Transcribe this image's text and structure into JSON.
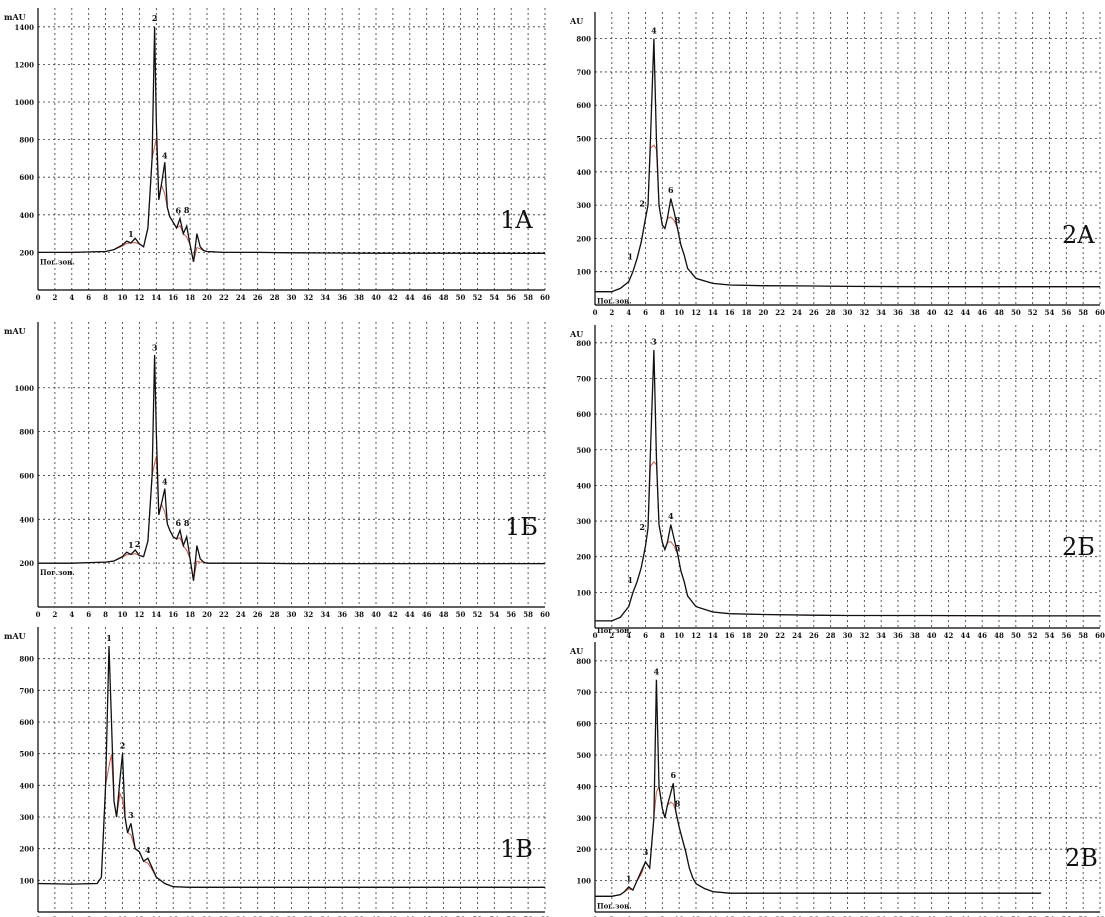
{
  "chart_data": [
    {
      "id": "1A",
      "type": "line",
      "title": "1A",
      "ylabel": "mAU",
      "xlabel": "",
      "ylim": [
        0,
        1500
      ],
      "yticks": [
        200,
        400,
        600,
        800,
        1000,
        1200,
        1400
      ],
      "xlim": [
        0,
        60
      ],
      "xtick_step": 2,
      "baseline_label": "Пог.зон.",
      "series": [
        {
          "x": [
            0,
            4,
            8,
            9,
            10,
            10.5,
            11,
            11.5,
            12,
            12.5,
            13,
            13.5,
            13.8,
            14,
            14.3,
            14.6,
            15,
            15.3,
            15.6,
            16,
            16.4,
            16.8,
            17.2,
            17.6,
            18,
            18.4,
            18.8,
            19.2,
            19.6,
            20,
            22,
            26,
            30,
            34,
            40,
            46,
            50,
            54,
            60
          ],
          "y": [
            200,
            200,
            205,
            215,
            240,
            260,
            250,
            275,
            245,
            230,
            330,
            700,
            1400,
            900,
            480,
            560,
            680,
            440,
            390,
            360,
            330,
            380,
            300,
            340,
            240,
            150,
            300,
            230,
            210,
            205,
            200,
            200,
            198,
            197,
            196,
            196,
            196,
            195,
            195
          ]
        }
      ],
      "peak_labels": [
        {
          "x": 11,
          "y": 270,
          "text": "1"
        },
        {
          "x": 13.8,
          "y": 1420,
          "text": "2"
        },
        {
          "x": 15,
          "y": 690,
          "text": "4"
        },
        {
          "x": 16.6,
          "y": 395,
          "text": "6"
        },
        {
          "x": 17.6,
          "y": 400,
          "text": "8"
        }
      ]
    },
    {
      "id": "1Б",
      "type": "line",
      "title": "1Б",
      "ylabel": "mAU",
      "xlabel": "",
      "ylim": [
        0,
        1300
      ],
      "yticks": [
        200,
        400,
        600,
        800,
        1000
      ],
      "xlim": [
        0,
        60
      ],
      "xtick_step": 2,
      "baseline_label": "Пог.зон.",
      "series": [
        {
          "x": [
            0,
            4,
            8,
            9,
            10,
            10.5,
            11,
            11.5,
            12,
            12.5,
            13,
            13.5,
            13.8,
            14,
            14.3,
            14.6,
            15,
            15.3,
            15.6,
            16,
            16.4,
            16.8,
            17.2,
            17.6,
            18,
            18.4,
            18.8,
            19.2,
            19.6,
            20,
            22,
            26,
            30,
            34,
            40,
            46,
            50,
            54,
            60
          ],
          "y": [
            200,
            200,
            205,
            210,
            230,
            250,
            240,
            260,
            235,
            230,
            300,
            600,
            1150,
            800,
            420,
            470,
            540,
            380,
            350,
            320,
            310,
            350,
            280,
            320,
            220,
            120,
            280,
            220,
            205,
            200,
            200,
            200,
            198,
            198,
            198,
            198,
            198,
            198,
            198
          ]
        }
      ],
      "peak_labels": [
        {
          "x": 11,
          "y": 260,
          "text": "1"
        },
        {
          "x": 11.8,
          "y": 265,
          "text": "2"
        },
        {
          "x": 13.8,
          "y": 1160,
          "text": "3"
        },
        {
          "x": 15,
          "y": 550,
          "text": "4"
        },
        {
          "x": 16.6,
          "y": 360,
          "text": "6"
        },
        {
          "x": 17.6,
          "y": 360,
          "text": "8"
        }
      ]
    },
    {
      "id": "1В",
      "type": "line",
      "title": "1В",
      "ylabel": "mAU",
      "xlabel": "",
      "ylim": [
        0,
        900
      ],
      "yticks": [
        100,
        200,
        300,
        400,
        500,
        600,
        700,
        800
      ],
      "xlim": [
        0,
        60
      ],
      "xtick_step": 2,
      "series": [
        {
          "x": [
            0,
            4,
            7,
            7.5,
            8,
            8.4,
            8.7,
            9,
            9.3,
            9.7,
            10,
            10.3,
            10.6,
            11,
            11.5,
            12,
            12.5,
            13,
            13.5,
            14,
            15,
            16,
            18,
            22,
            26,
            30,
            34,
            40,
            46,
            50,
            54,
            60
          ],
          "y": [
            90,
            88,
            90,
            110,
            400,
            840,
            600,
            350,
            300,
            420,
            500,
            300,
            250,
            280,
            200,
            190,
            160,
            170,
            140,
            110,
            90,
            80,
            78,
            78,
            78,
            78,
            78,
            78,
            78,
            78,
            78,
            78
          ]
        }
      ],
      "peak_labels": [
        {
          "x": 8.4,
          "y": 850,
          "text": "1"
        },
        {
          "x": 10,
          "y": 510,
          "text": "2"
        },
        {
          "x": 11,
          "y": 290,
          "text": "3"
        },
        {
          "x": 13,
          "y": 180,
          "text": "4"
        }
      ]
    },
    {
      "id": "2A",
      "type": "line",
      "title": "2A",
      "ylabel": "AU",
      "xlabel": "",
      "ylim": [
        0,
        880
      ],
      "yticks": [
        100,
        200,
        300,
        400,
        500,
        600,
        700,
        800
      ],
      "xlim": [
        0,
        60
      ],
      "xtick_step": 2,
      "baseline_label": "Пог.зон.",
      "series": [
        {
          "x": [
            0,
            2,
            3,
            4,
            4.5,
            5,
            5.5,
            6,
            6.3,
            6.6,
            7,
            7.3,
            7.6,
            8,
            8.3,
            8.6,
            9,
            9.4,
            9.8,
            10.2,
            10.6,
            11,
            12,
            14,
            16,
            20,
            26,
            30,
            40,
            50,
            60
          ],
          "y": [
            40,
            40,
            50,
            70,
            100,
            140,
            190,
            260,
            300,
            500,
            800,
            500,
            300,
            240,
            230,
            260,
            320,
            280,
            230,
            180,
            150,
            110,
            80,
            65,
            60,
            58,
            57,
            56,
            55,
            55,
            55
          ]
        }
      ],
      "peak_labels": [
        {
          "x": 4.2,
          "y": 130,
          "text": "1"
        },
        {
          "x": 5.6,
          "y": 290,
          "text": "2"
        },
        {
          "x": 7,
          "y": 810,
          "text": "4"
        },
        {
          "x": 9,
          "y": 330,
          "text": "6"
        },
        {
          "x": 9.8,
          "y": 240,
          "text": "8"
        }
      ]
    },
    {
      "id": "2Б",
      "type": "line",
      "title": "2Б",
      "ylabel": "AU",
      "xlabel": "",
      "ylim": [
        0,
        850
      ],
      "yticks": [
        100,
        200,
        300,
        400,
        500,
        600,
        700,
        800
      ],
      "xlim": [
        0,
        60
      ],
      "xtick_step": 2,
      "baseline_label": "Пог.зон.",
      "series": [
        {
          "x": [
            0,
            2,
            3,
            4,
            4.5,
            5,
            5.5,
            6,
            6.3,
            6.6,
            7,
            7.3,
            7.6,
            8,
            8.3,
            8.6,
            9,
            9.4,
            9.8,
            10.2,
            10.6,
            11,
            12,
            14,
            16,
            20,
            26,
            30,
            40,
            50,
            60
          ],
          "y": [
            20,
            20,
            30,
            60,
            100,
            130,
            170,
            230,
            280,
            500,
            780,
            480,
            290,
            240,
            220,
            240,
            290,
            250,
            210,
            160,
            130,
            90,
            60,
            45,
            40,
            38,
            36,
            35,
            35,
            34,
            34
          ]
        }
      ],
      "peak_labels": [
        {
          "x": 4.2,
          "y": 120,
          "text": "1"
        },
        {
          "x": 5.6,
          "y": 270,
          "text": "2"
        },
        {
          "x": 7,
          "y": 790,
          "text": "3"
        },
        {
          "x": 9,
          "y": 300,
          "text": "4"
        },
        {
          "x": 9.8,
          "y": 210,
          "text": "5"
        }
      ]
    },
    {
      "id": "2В",
      "type": "line",
      "title": "2В",
      "ylabel": "AU",
      "xlabel": "",
      "ylim": [
        0,
        860
      ],
      "yticks": [
        100,
        200,
        300,
        400,
        500,
        600,
        700,
        800
      ],
      "xlim": [
        0,
        60
      ],
      "xtick_step": 2,
      "baseline_label": "Пог.зон.",
      "series": [
        {
          "x": [
            0,
            2,
            3,
            3.5,
            4,
            4.5,
            5,
            5.5,
            6,
            6.5,
            7,
            7.3,
            7.6,
            8,
            8.3,
            8.6,
            9,
            9.3,
            9.6,
            10,
            10.4,
            10.8,
            11.2,
            11.6,
            12,
            13,
            14,
            16,
            20,
            30,
            40,
            50,
            53
          ],
          "y": [
            50,
            50,
            55,
            65,
            80,
            70,
            100,
            130,
            160,
            140,
            300,
            740,
            400,
            330,
            300,
            340,
            380,
            410,
            320,
            270,
            230,
            190,
            140,
            110,
            90,
            75,
            65,
            60,
            60,
            60,
            60,
            60,
            60
          ]
        }
      ],
      "peak_labels": [
        {
          "x": 4,
          "y": 90,
          "text": "1"
        },
        {
          "x": 6,
          "y": 175,
          "text": "3"
        },
        {
          "x": 7.3,
          "y": 750,
          "text": "4"
        },
        {
          "x": 9.3,
          "y": 420,
          "text": "6"
        },
        {
          "x": 9.8,
          "y": 330,
          "text": "8"
        }
      ]
    }
  ]
}
